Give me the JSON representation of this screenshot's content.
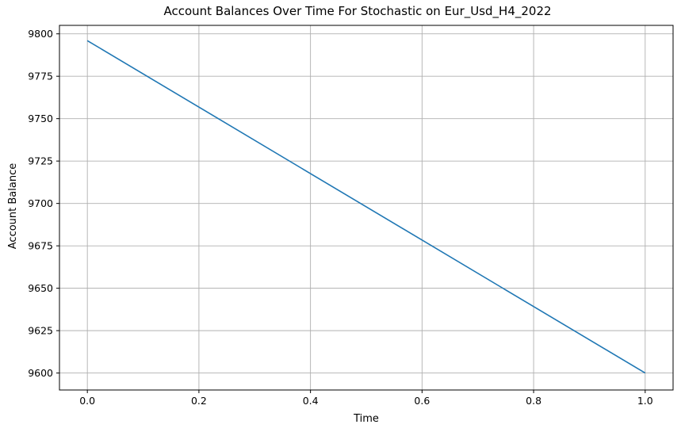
{
  "chart_data": {
    "type": "line",
    "title": "Account Balances Over Time For Stochastic on Eur_Usd_H4_2022",
    "xlabel": "Time",
    "ylabel": "Account Balance",
    "xlim": [
      -0.05,
      1.05
    ],
    "ylim": [
      9590,
      9805
    ],
    "xticks": [
      0.0,
      0.2,
      0.4,
      0.6,
      0.8,
      1.0
    ],
    "xtick_labels": [
      "0.0",
      "0.2",
      "0.4",
      "0.6",
      "0.8",
      "1.0"
    ],
    "yticks": [
      9600,
      9625,
      9650,
      9675,
      9700,
      9725,
      9750,
      9775,
      9800
    ],
    "ytick_labels": [
      "9600",
      "9625",
      "9650",
      "9675",
      "9700",
      "9725",
      "9750",
      "9775",
      "9800"
    ],
    "grid": true,
    "series": [
      {
        "color": "#1f77b4",
        "x": [
          0.0,
          1.0
        ],
        "y": [
          9796,
          9600
        ]
      }
    ]
  }
}
